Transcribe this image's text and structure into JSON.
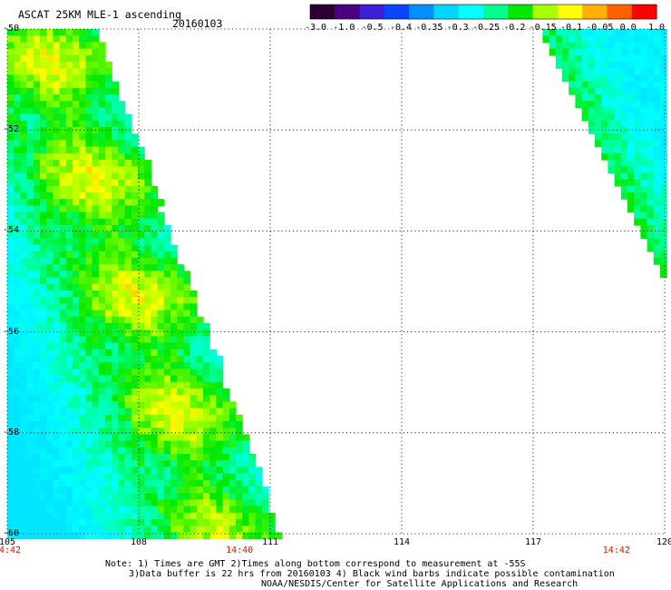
{
  "header": {
    "title": "ASCAT 25KM MLE-1 ascending",
    "date": "20160103"
  },
  "colorbar": {
    "tick_labels": [
      "-3.0",
      "-1.0",
      "-0.5",
      "-0.4",
      "-0.35",
      "-0.3",
      "-0.25",
      "-0.2",
      "-0.15",
      "-0.1",
      "-0.05",
      "0.0",
      "1.0"
    ],
    "colors": [
      "#2a0032",
      "#4b0082",
      "#3a1fd6",
      "#0a44ff",
      "#0090ff",
      "#00d6ff",
      "#00ffff",
      "#00ff90",
      "#00e800",
      "#a8ff00",
      "#ffff00",
      "#ffb000",
      "#ff6000",
      "#ff0000"
    ]
  },
  "axes": {
    "lat_labels": [
      "-50",
      "-52",
      "-54",
      "-56",
      "-58",
      "-60"
    ],
    "lon_labels": [
      "105",
      "108",
      "111",
      "114",
      "117",
      "120"
    ],
    "time_labels": [
      {
        "text": "14:42",
        "lon": 105
      },
      {
        "text": "14:40",
        "lon": 110.3
      },
      {
        "text": "14:42",
        "lon": 118.9
      }
    ]
  },
  "notes": {
    "line1": "Note: 1) Times are GMT 2)Times along bottom correspond to measurement at -55S",
    "line2": "3)Data buffer is 22 hrs from 20160103 4) Black wind barbs indicate possible contamination",
    "line3": "NOAA/NESDIS/Center for Satellite Applications and Research"
  },
  "map_data": {
    "lon_range": [
      105,
      120
    ],
    "lat_range": [
      -60,
      -50
    ],
    "grid": true,
    "swaths": [
      {
        "name_hidden": true,
        "edge_top_lon": 107.0,
        "edge_bottom_lon": 111.2,
        "side": "west"
      },
      {
        "name_hidden": true,
        "edge_top_lon": 117.1,
        "edge_bottom_lon": 119.9,
        "edge_bottom_lat": -54.8,
        "side": "east"
      }
    ]
  }
}
